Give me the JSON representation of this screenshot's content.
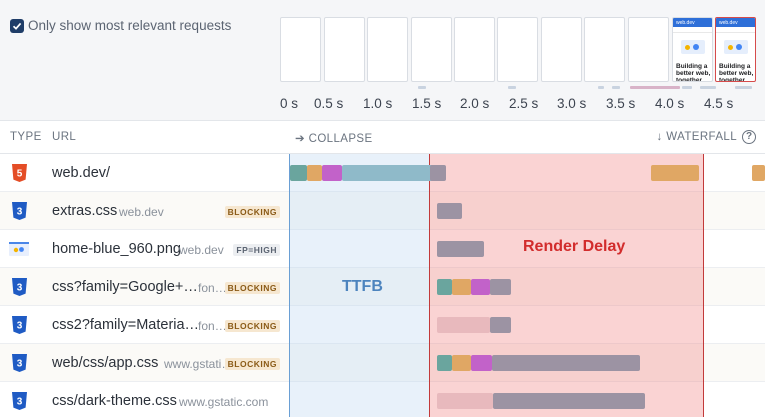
{
  "filter": {
    "label": "Only show most relevant requests",
    "checked": true
  },
  "filmstrip": {
    "frames": [
      {
        "state": "blank"
      },
      {
        "state": "blank"
      },
      {
        "state": "blank"
      },
      {
        "state": "blank"
      },
      {
        "state": "blank"
      },
      {
        "state": "blank"
      },
      {
        "state": "blank"
      },
      {
        "state": "blank"
      },
      {
        "state": "blank"
      },
      {
        "state": "rendered",
        "caption": "Building a better web, together",
        "logo": "web.dev"
      },
      {
        "state": "rendered",
        "caption": "Building a better web, together",
        "logo": "web.dev",
        "active": true
      }
    ],
    "ticks": [
      "0 s",
      "0.5 s",
      "1.0 s",
      "1.5 s",
      "2.0 s",
      "2.5 s",
      "3.0 s",
      "3.5 s",
      "4.0 s",
      "4.5 s"
    ]
  },
  "table_header": {
    "type": "TYPE",
    "url": "URL",
    "collapse": "➔ COLLAPSE",
    "waterfall": "↓ WATERFALL",
    "help_icon": "help-icon"
  },
  "annotations": {
    "ttfb": "TTFB",
    "render_delay": "Render Delay"
  },
  "rows": [
    {
      "type": "html",
      "url": "web.dev/",
      "domain": "",
      "badge": ""
    },
    {
      "type": "css",
      "url": "extras.css",
      "domain": "web.dev",
      "badge": "BLOCKING"
    },
    {
      "type": "image",
      "url": "home-blue_960.png",
      "domain": "web.dev",
      "badge": "FP=HIGH"
    },
    {
      "type": "css",
      "url": "css?family=Google+…",
      "domain": "fonts.…",
      "badge": "BLOCKING"
    },
    {
      "type": "css",
      "url": "css2?family=Materia…",
      "domain": "fonts.…",
      "badge": "BLOCKING"
    },
    {
      "type": "css",
      "url": "web/css/app.css",
      "domain": "www.gstatic.com",
      "badge": "BLOCKING"
    },
    {
      "type": "css",
      "url": "css/dark-theme.css",
      "domain": "www.gstatic.com",
      "badge": ""
    }
  ],
  "colors": {
    "html_icon": "#e44d26",
    "css_icon": "#1f5bc4",
    "dns": "#6aa59e",
    "connect": "#e0a764",
    "ssl": "#c262c9",
    "wait": "#8fbac9",
    "download": "#9c93a3",
    "queued": "#e8b9bd",
    "ttfb_zone": "#bed6f0",
    "render_zone": "#f08282"
  }
}
